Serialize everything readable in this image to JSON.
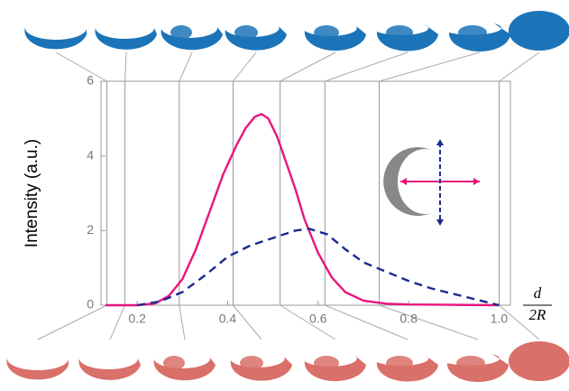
{
  "chart_data": {
    "type": "line",
    "y_label": "Intensity (a.u.)",
    "x_label": {
      "numerator": "d",
      "denominator": "2R"
    },
    "xlim": [
      0.12,
      1.025
    ],
    "ylim": [
      0,
      6
    ],
    "xticks": [
      0.2,
      0.4,
      0.6,
      0.8,
      {
        "value": 1,
        "label": "1.0"
      }
    ],
    "yticks": [
      0,
      2,
      4,
      6
    ],
    "reference_lines": [
      0.133,
      0.173,
      0.293,
      0.412,
      0.516,
      0.615,
      0.735,
      1.0
    ],
    "series": [
      {
        "color": "#e8157c",
        "dash": false,
        "x": [
          0.13,
          0.2,
          0.24,
          0.27,
          0.3,
          0.33,
          0.36,
          0.39,
          0.42,
          0.44,
          0.46,
          0.475,
          0.49,
          0.51,
          0.53,
          0.55,
          0.57,
          0.6,
          0.63,
          0.66,
          0.7,
          0.75,
          0.8,
          0.9,
          1.0
        ],
        "values": [
          0,
          0,
          0.05,
          0.25,
          0.7,
          1.5,
          2.5,
          3.5,
          4.3,
          4.75,
          5.05,
          5.12,
          5.0,
          4.5,
          3.8,
          3.1,
          2.3,
          1.4,
          0.75,
          0.35,
          0.12,
          0.04,
          0.02,
          0.01,
          0
        ]
      },
      {
        "color": "#1a2b8f",
        "dash": true,
        "x": [
          0.2,
          0.25,
          0.3,
          0.35,
          0.4,
          0.45,
          0.5,
          0.55,
          0.58,
          0.62,
          0.66,
          0.7,
          0.75,
          0.8,
          0.85,
          0.9,
          0.95,
          1.0
        ],
        "values": [
          0,
          0.1,
          0.35,
          0.8,
          1.3,
          1.6,
          1.8,
          2.0,
          2.05,
          1.9,
          1.5,
          1.15,
          0.9,
          0.65,
          0.45,
          0.3,
          0.15,
          0
        ]
      }
    ]
  }
}
